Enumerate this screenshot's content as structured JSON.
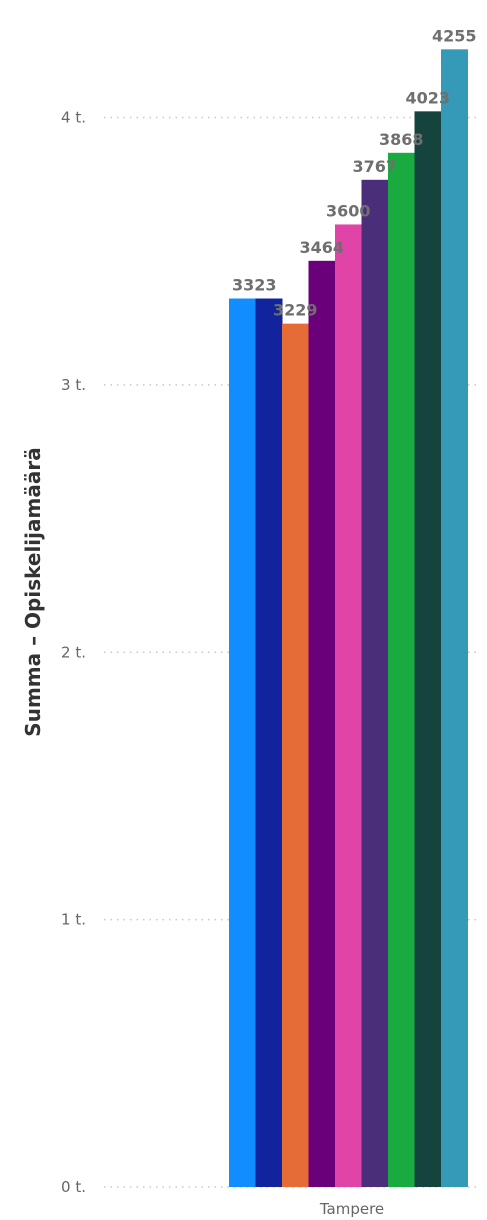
{
  "chart_data": {
    "type": "bar",
    "ylabel": "Summa – Opiskelijamäärä",
    "xlabel": "",
    "categories": [
      "Tampere"
    ],
    "ylim": [
      0,
      4300
    ],
    "y_ticks": [
      {
        "value": 0,
        "label": "0 t."
      },
      {
        "value": 1000,
        "label": "1 t."
      },
      {
        "value": 2000,
        "label": "2 t."
      },
      {
        "value": 3000,
        "label": "3 t."
      },
      {
        "value": 4000,
        "label": "4 t."
      }
    ],
    "grid": true,
    "series": [
      {
        "values": [
          3323
        ],
        "label": "3323",
        "color": "#118DFF"
      },
      {
        "values": [
          3323
        ],
        "label": "",
        "color": "#12239E"
      },
      {
        "values": [
          3229
        ],
        "label": "3229",
        "color": "#E66C37"
      },
      {
        "values": [
          3464
        ],
        "label": "3464",
        "color": "#6B007B"
      },
      {
        "values": [
          3600
        ],
        "label": "3600",
        "color": "#E044A7"
      },
      {
        "values": [
          3767
        ],
        "label": "3767",
        "color": "#4A2E7A"
      },
      {
        "values": [
          3868
        ],
        "label": "3868",
        "color": "#1AAB40"
      },
      {
        "values": [
          4023
        ],
        "label": "4023",
        "color": "#15443E"
      },
      {
        "values": [
          4255
        ],
        "label": "4255",
        "color": "#3599B8"
      }
    ]
  }
}
